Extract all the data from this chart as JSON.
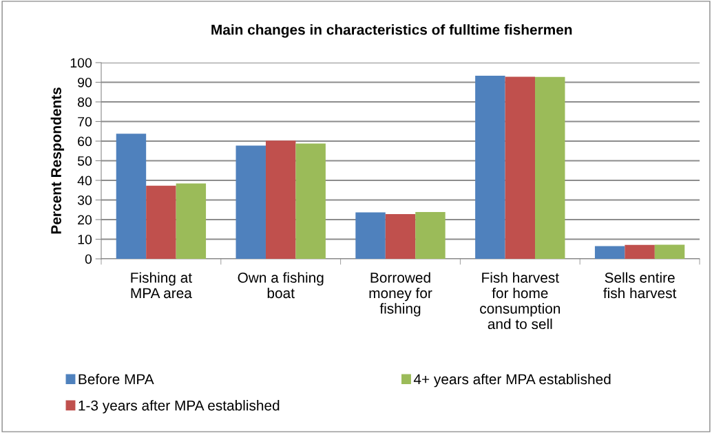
{
  "chart_data": {
    "type": "bar",
    "title": "Main changes in characteristics of fulltime fishermen",
    "ylabel": "Percent Respondents",
    "categories": [
      "Fishing at\nMPA area",
      "Own a fishing\nboat",
      "Borrowed\nmoney for\nfishing",
      "Fish harvest\nfor home\nconsumption\nand to sell",
      "Sells entire\nfish harvest"
    ],
    "series": [
      {
        "name": "Before MPA",
        "color": "#4f81bd",
        "values": [
          63.8,
          57.7,
          23.7,
          93.3,
          6.5
        ]
      },
      {
        "name": "1-3 years after MPA established",
        "color": "#c0504d",
        "values": [
          37.3,
          60.3,
          22.8,
          92.8,
          7.1
        ]
      },
      {
        "name": "4+ years after MPA established",
        "color": "#9bbb59",
        "values": [
          38.4,
          58.8,
          23.9,
          92.7,
          7.2
        ]
      }
    ],
    "ylim": [
      0,
      100
    ],
    "yticks": [
      0,
      10,
      20,
      30,
      40,
      50,
      60,
      70,
      80,
      90,
      100
    ],
    "grid": "y",
    "legend": "bottom"
  }
}
